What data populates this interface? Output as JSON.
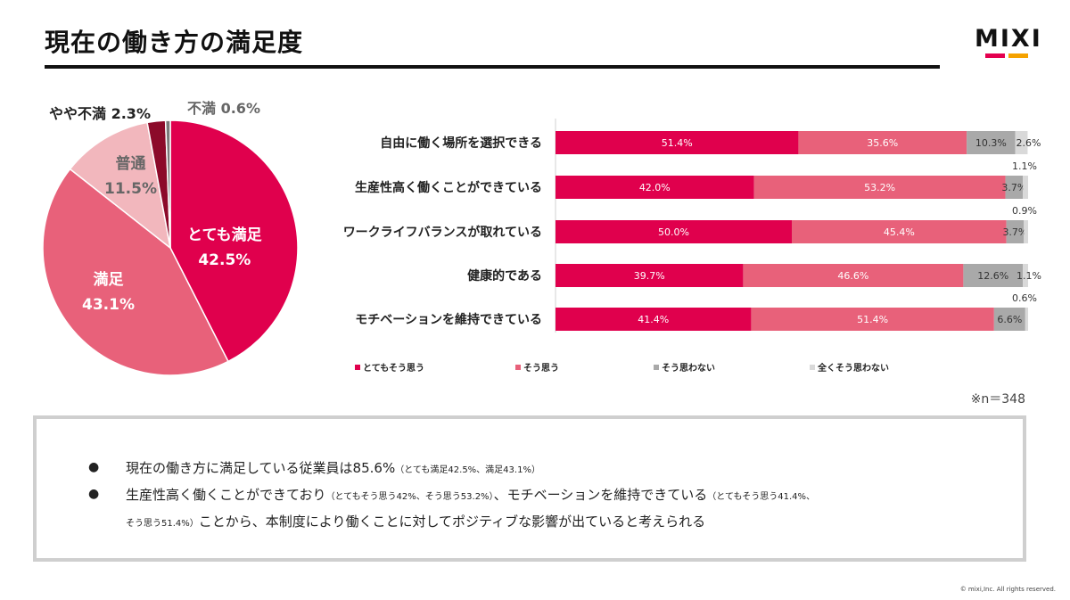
{
  "page": {
    "title": "現在の働き方の満足度"
  },
  "logo": {
    "text": "MIXI",
    "bar_colors": [
      "#e4004f",
      "#f5a200"
    ]
  },
  "colors": {
    "very_satisfied": "#e0004d",
    "satisfied": "#e8617a",
    "neutral": "#f2b7bd",
    "somewhat_dissatisfied": "#8c0a2a",
    "dissatisfied": "#7a7a7a",
    "bar_grey": "#a9a9a9",
    "bar_lightgrey": "#d9d9d9"
  },
  "chart_data": [
    {
      "type": "pie",
      "slices": [
        {
          "name": "とても満足",
          "value": 42.5,
          "label": "42.5%"
        },
        {
          "name": "満足",
          "value": 43.1,
          "label": "43.1%"
        },
        {
          "name": "普通",
          "value": 11.5,
          "label": "11.5%"
        },
        {
          "name": "やや不満",
          "value": 2.3,
          "label": "2.3%"
        },
        {
          "name": "不満",
          "value": 0.6,
          "label": "0.6%"
        }
      ]
    },
    {
      "type": "bar",
      "orientation": "horizontal",
      "stacked": true,
      "xlim": [
        0,
        100
      ],
      "categories": [
        "自由に働く場所を選択できる",
        "生産性高く働くことができている",
        "ワークライフバランスが取れている",
        "健康的である",
        "モチベーションを維持できている"
      ],
      "series": [
        {
          "name": "とてもそう思う",
          "values": [
            51.4,
            42.0,
            50.0,
            39.7,
            41.4
          ],
          "labels": [
            "51.4%",
            "42.0%",
            "50.0%",
            "39.7%",
            "41.4%"
          ]
        },
        {
          "name": "そう思う",
          "values": [
            35.6,
            53.2,
            45.4,
            46.6,
            51.4
          ],
          "labels": [
            "35.6%",
            "53.2%",
            "45.4%",
            "46.6%",
            "51.4%"
          ]
        },
        {
          "name": "そう思わない",
          "values": [
            10.3,
            3.7,
            3.7,
            12.6,
            6.6
          ],
          "labels": [
            "10.3%",
            "3.7%",
            "3.7%",
            "12.6%",
            "6.6%"
          ]
        },
        {
          "name": "全くそう思わない",
          "values": [
            2.6,
            1.1,
            0.9,
            1.1,
            0.6
          ],
          "labels": [
            "2.6%",
            "1.1%",
            "0.9%",
            "1.1%",
            "0.6%"
          ]
        }
      ],
      "legend": "bottom"
    }
  ],
  "note": "※n＝348",
  "summary": {
    "bullet": "●",
    "line1_main": "現在の働き方に満足している従業員は85.6%",
    "line1_small": "（とても満足42.5%、満足43.1%）",
    "line2_main_a": "生産性高く働くことができており",
    "line2_small_a": "（とてもそう思う42%、そう思う53.2%）",
    "line2_main_b": "、モチベーションを維持できている",
    "line2_small_b": "（とてもそう思う41.4%、",
    "line3_small": "そう思う51.4%）",
    "line3_main": "ことから、本制度により働くことに対してポジティブな影響が出ていると考えられる"
  },
  "footer": "© mixi,Inc. All rights reserved."
}
